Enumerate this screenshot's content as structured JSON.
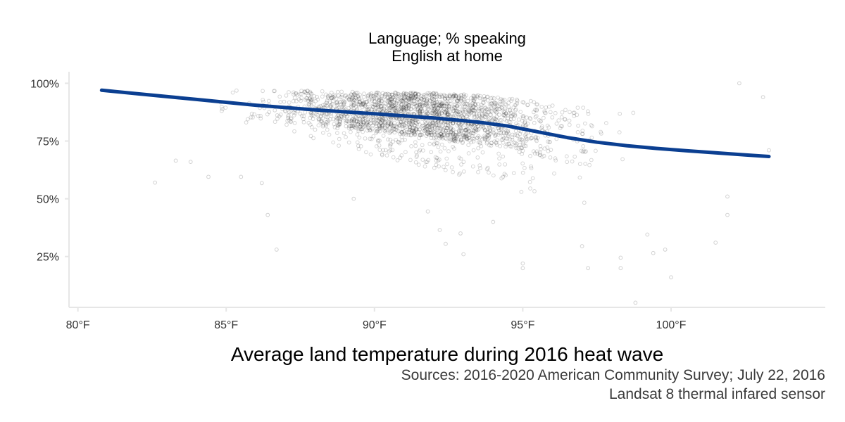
{
  "chart_data": {
    "type": "scatter",
    "title_lines": [
      "Language; % speaking",
      "English at home"
    ],
    "xlabel": "Average land temperature during 2016 heat wave",
    "caption_lines": [
      "Sources: 2016-2020 American Community Survey; July 22, 2016",
      "Landsat 8 thermal infared sensor"
    ],
    "xlim": [
      79.7,
      105.2
    ],
    "ylim": [
      0.03,
      1.05
    ],
    "x_ticks": [
      80,
      85,
      90,
      95,
      100
    ],
    "x_tick_labels": [
      "80°F",
      "85°F",
      "90°F",
      "95°F",
      "100°F"
    ],
    "y_ticks": [
      0.25,
      0.5,
      0.75,
      1.0
    ],
    "y_tick_labels": [
      "25%",
      "50%",
      "75%",
      "100%"
    ],
    "grid": false,
    "colors": {
      "points_stroke": "#000000",
      "trend_line": "#0b3f91",
      "axis": "#e6e6e6"
    },
    "trend_line": {
      "x": [
        80.8,
        82,
        84,
        86,
        88,
        90,
        92,
        93.5,
        94.5,
        95.5,
        96.5,
        97.5,
        98.5,
        99.5,
        100.5,
        101.5,
        102.5,
        103.3
      ],
      "y": [
        0.97,
        0.955,
        0.93,
        0.905,
        0.885,
        0.868,
        0.85,
        0.832,
        0.815,
        0.79,
        0.765,
        0.745,
        0.73,
        0.718,
        0.708,
        0.699,
        0.69,
        0.683
      ]
    },
    "scatter_points": {
      "n": 2200,
      "seed": 7,
      "x_range": [
        81.0,
        103.3
      ],
      "y_cap": 1.0,
      "outliers": [
        {
          "x": 83.3,
          "y": 0.665
        },
        {
          "x": 83.8,
          "y": 0.66
        },
        {
          "x": 85.5,
          "y": 0.595
        },
        {
          "x": 86.2,
          "y": 0.568
        },
        {
          "x": 86.4,
          "y": 0.43
        },
        {
          "x": 86.7,
          "y": 0.28
        },
        {
          "x": 82.6,
          "y": 0.57
        },
        {
          "x": 84.4,
          "y": 0.595
        },
        {
          "x": 89.3,
          "y": 0.5
        },
        {
          "x": 91.8,
          "y": 0.445
        },
        {
          "x": 92.2,
          "y": 0.365
        },
        {
          "x": 92.4,
          "y": 0.305
        },
        {
          "x": 92.9,
          "y": 0.35
        },
        {
          "x": 93.0,
          "y": 0.26
        },
        {
          "x": 94.0,
          "y": 0.4
        },
        {
          "x": 95.0,
          "y": 0.22
        },
        {
          "x": 95.0,
          "y": 0.2
        },
        {
          "x": 97.0,
          "y": 0.295
        },
        {
          "x": 97.2,
          "y": 0.2
        },
        {
          "x": 98.3,
          "y": 0.245
        },
        {
          "x": 98.3,
          "y": 0.2
        },
        {
          "x": 98.8,
          "y": 0.05
        },
        {
          "x": 99.2,
          "y": 0.345
        },
        {
          "x": 99.4,
          "y": 0.265
        },
        {
          "x": 100.0,
          "y": 0.16
        },
        {
          "x": 99.8,
          "y": 0.28
        },
        {
          "x": 101.5,
          "y": 0.31
        },
        {
          "x": 101.9,
          "y": 0.43
        },
        {
          "x": 101.9,
          "y": 0.51
        },
        {
          "x": 103.3,
          "y": 0.71
        },
        {
          "x": 102.3,
          "y": 1.0
        },
        {
          "x": 103.1,
          "y": 0.94
        }
      ]
    }
  }
}
